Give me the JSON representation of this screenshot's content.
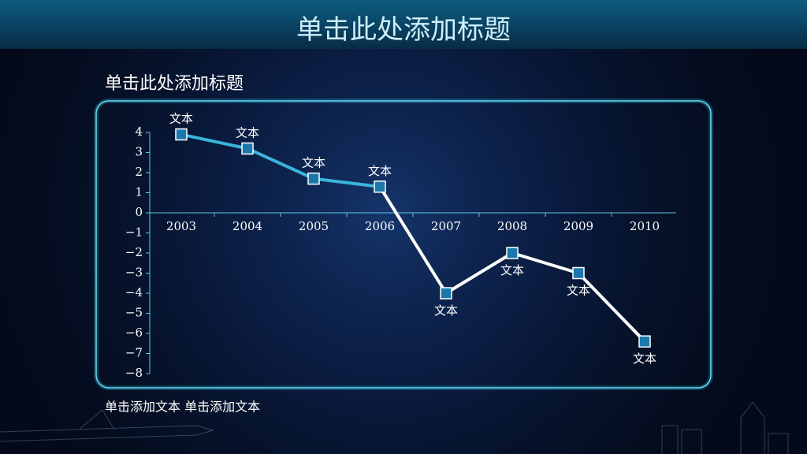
{
  "title": "单击此处添加标题",
  "chart_data": {
    "type": "line",
    "title": "单击此处添加标题",
    "categories": [
      "2003",
      "2004",
      "2005",
      "2006",
      "2007",
      "2008",
      "2009",
      "2010"
    ],
    "series": [
      {
        "values": [
          3.9,
          3.2,
          1.7,
          1.3,
          -4.0,
          -2.0,
          -3.0,
          -6.4
        ],
        "color": "#ffffff",
        "segment_colors": [
          "#3ab4dc",
          "#3ab4dc",
          "#3ab4dc",
          "#ffffff",
          "#ffffff",
          "#ffffff",
          "#ffffff"
        ],
        "point_labels": [
          "文本",
          "文本",
          "文本",
          "文本",
          "文本",
          "文本",
          "文本",
          "文本"
        ]
      }
    ],
    "ylim": [
      -8,
      4
    ],
    "yticks": [
      4,
      3,
      2,
      1,
      0,
      {
        "value": -1,
        "label": "−1"
      },
      {
        "value": -2,
        "label": "−2"
      },
      {
        "value": -3,
        "label": "−3"
      },
      {
        "value": -4,
        "label": "−4"
      },
      {
        "value": -5,
        "label": "−5"
      },
      {
        "value": -6,
        "label": "−6"
      },
      {
        "value": -7,
        "label": "−7"
      },
      {
        "value": -8,
        "label": "−8"
      }
    ]
  },
  "footer": "单击添加文本  单击添加文本"
}
